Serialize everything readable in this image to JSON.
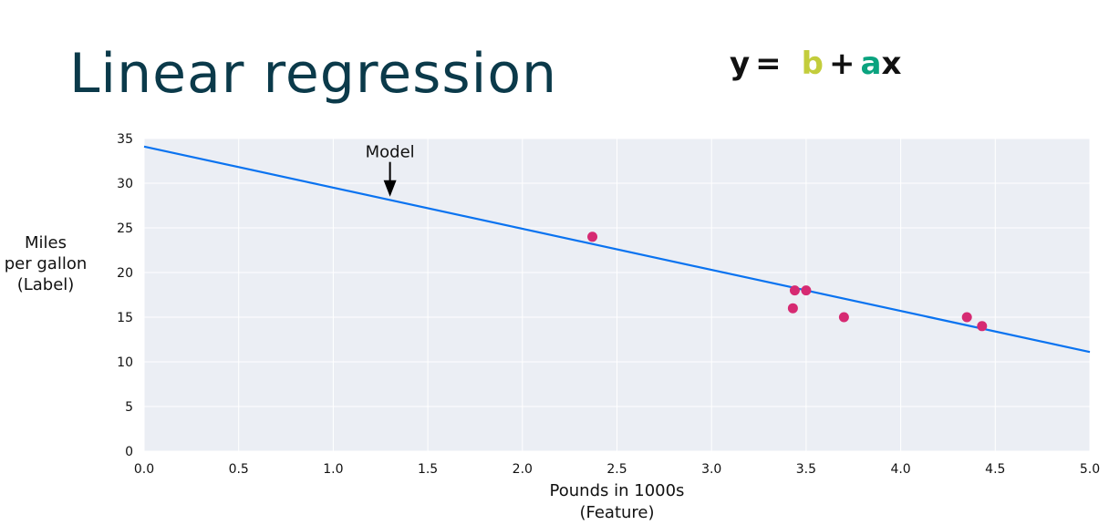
{
  "title": "Linear regression",
  "formula": {
    "parts": [
      {
        "text": "y",
        "color": "#111111"
      },
      {
        "text": "=",
        "color": "#111111"
      },
      {
        "text": "b",
        "color": "#c3cd3c"
      },
      {
        "text": "+",
        "color": "#111111"
      },
      {
        "text": "a",
        "color": "#0aa37f"
      },
      {
        "text": "x",
        "color": "#111111"
      }
    ]
  },
  "chart_data": {
    "type": "scatter",
    "xlabel": [
      "Pounds in 1000s",
      "(Feature)"
    ],
    "ylabel": [
      "Miles",
      "per gallon",
      "(Label)"
    ],
    "xlim": [
      0,
      5
    ],
    "ylim": [
      0,
      35
    ],
    "xticks": [
      "0.0",
      "0.5",
      "1.0",
      "1.5",
      "2.0",
      "2.5",
      "3.0",
      "3.5",
      "4.0",
      "4.5",
      "5.0"
    ],
    "yticks": [
      "0",
      "5",
      "10",
      "15",
      "20",
      "25",
      "30",
      "35"
    ],
    "grid": true,
    "background": "#ebeef4",
    "points": {
      "color": "#d62a72",
      "x": [
        2.37,
        3.44,
        3.5,
        3.43,
        3.7,
        4.35,
        4.43
      ],
      "y": [
        24,
        18,
        18,
        16,
        15,
        15,
        14
      ]
    },
    "line": {
      "color": "#0a73f0",
      "x": [
        0,
        5
      ],
      "y": [
        34.1,
        11.1
      ]
    },
    "annotation": {
      "text": "Model",
      "x": 1.3,
      "y": 28.5
    }
  }
}
